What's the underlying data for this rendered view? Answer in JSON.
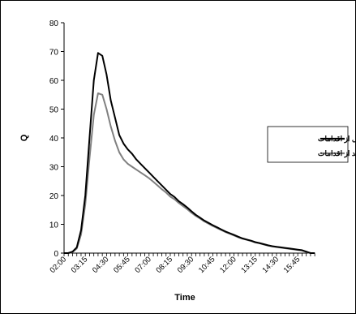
{
  "chart_data": {
    "type": "line",
    "xlabel": "Time",
    "ylabel": "Q",
    "ylim": [
      0,
      80
    ],
    "yticks": [
      0,
      10,
      20,
      30,
      40,
      50,
      60,
      70,
      80
    ],
    "x_tick_labels": [
      "02:00",
      "03:15",
      "04:30",
      "05:45",
      "07:00",
      "08:15",
      "09:30",
      "10:45",
      "12:00",
      "13:15",
      "14:30",
      "15:45"
    ],
    "x": [
      "02:00",
      "02:15",
      "02:30",
      "02:45",
      "03:00",
      "03:15",
      "03:30",
      "03:45",
      "04:00",
      "04:15",
      "04:30",
      "04:45",
      "05:00",
      "05:15",
      "05:30",
      "05:45",
      "06:00",
      "06:15",
      "06:30",
      "06:45",
      "07:00",
      "07:15",
      "07:30",
      "07:45",
      "08:00",
      "08:15",
      "08:30",
      "08:45",
      "09:00",
      "09:15",
      "09:30",
      "09:45",
      "10:00",
      "10:15",
      "10:30",
      "10:45",
      "11:00",
      "11:15",
      "11:30",
      "11:45",
      "12:00",
      "12:15",
      "12:30",
      "12:45",
      "13:00",
      "13:15",
      "13:30",
      "13:45",
      "14:00",
      "14:15",
      "14:30",
      "14:45",
      "15:00",
      "15:15",
      "15:30",
      "15:45",
      "16:00",
      "16:15",
      "16:30",
      "16:45"
    ],
    "series": [
      {
        "name": "قبل از اقدامات",
        "color": "#000000",
        "values": [
          0,
          0,
          0.5,
          2,
          8,
          20,
          40,
          60,
          69.5,
          68.5,
          62,
          53,
          47,
          41,
          38,
          36,
          34.5,
          32.5,
          31,
          29.5,
          28,
          26.5,
          25,
          23.5,
          22,
          20.5,
          19.5,
          18,
          17,
          15.8,
          14.5,
          13.3,
          12.3,
          11.3,
          10.5,
          9.7,
          9,
          8.2,
          7.5,
          6.9,
          6.3,
          5.7,
          5.1,
          4.7,
          4.3,
          3.8,
          3.5,
          3.1,
          2.7,
          2.4,
          2.2,
          2,
          1.8,
          1.6,
          1.4,
          1.2,
          1,
          0.5,
          0,
          0
        ]
      },
      {
        "name": "بعد از اقدامات",
        "color": "#808080",
        "values": [
          0,
          0,
          0.4,
          1.6,
          6.5,
          17,
          33,
          48,
          55.5,
          55,
          50,
          44,
          39,
          35,
          32.5,
          31,
          30,
          29,
          28,
          27,
          26,
          24.8,
          23.5,
          22.2,
          21,
          19.6,
          18.7,
          17.4,
          16.3,
          15.2,
          14,
          12.9,
          12,
          11,
          10.2,
          9.4,
          8.7,
          8,
          7.3,
          6.7,
          6.1,
          5.5,
          5,
          4.6,
          4.2,
          3.7,
          3.4,
          3,
          2.6,
          2.3,
          2.1,
          1.9,
          1.7,
          1.5,
          1.3,
          1.1,
          0.9,
          0.4,
          0,
          0
        ]
      }
    ],
    "legend_position": "right",
    "grid": false
  }
}
